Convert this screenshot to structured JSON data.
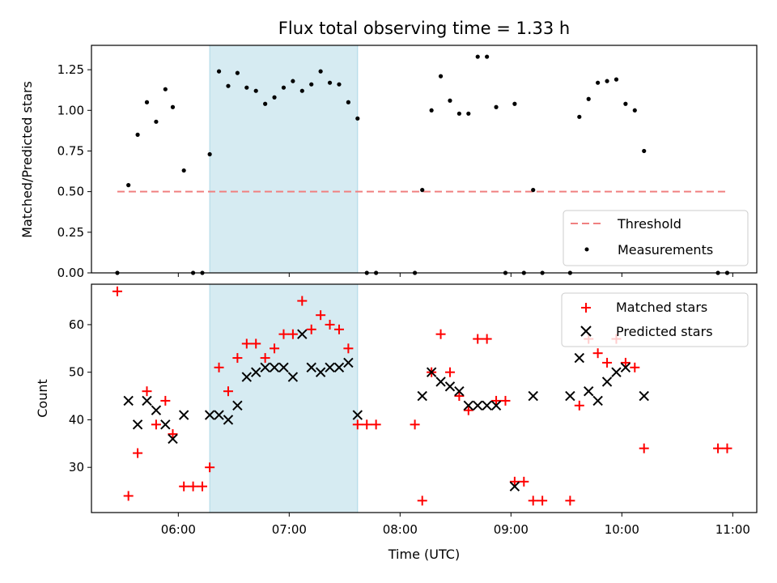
{
  "chart_data": [
    {
      "type": "scatter",
      "title": "Flux total observing time = 1.33 h",
      "xlabel": "",
      "ylabel": "Matched/Predicted stars",
      "ylim": [
        0,
        1.4
      ],
      "yticks": [
        "0.00",
        "0.25",
        "0.50",
        "0.75",
        "1.00",
        "1.25"
      ],
      "shaded_interval": [
        "06:17",
        "07:37"
      ],
      "threshold": {
        "name": "Threshold",
        "value": 0.5,
        "x_start": "05:27",
        "x_end": "10:57",
        "color": "#f08080"
      },
      "legend": {
        "position": "lower-right",
        "entries": [
          "Threshold",
          "Measurements"
        ]
      },
      "series": [
        {
          "name": "Measurements",
          "color": "#000000",
          "points": [
            [
              "05:27",
              0.0
            ],
            [
              "05:33",
              0.54
            ],
            [
              "05:38",
              0.85
            ],
            [
              "05:43",
              1.05
            ],
            [
              "05:48",
              0.93
            ],
            [
              "05:53",
              1.13
            ],
            [
              "05:57",
              1.02
            ],
            [
              "06:03",
              0.63
            ],
            [
              "06:08",
              0.0
            ],
            [
              "06:13",
              0.0
            ],
            [
              "06:17",
              0.73
            ],
            [
              "06:22",
              1.24
            ],
            [
              "06:27",
              1.15
            ],
            [
              "06:32",
              1.23
            ],
            [
              "06:37",
              1.14
            ],
            [
              "06:42",
              1.12
            ],
            [
              "06:47",
              1.04
            ],
            [
              "06:52",
              1.08
            ],
            [
              "06:57",
              1.14
            ],
            [
              "07:02",
              1.18
            ],
            [
              "07:07",
              1.12
            ],
            [
              "07:12",
              1.16
            ],
            [
              "07:17",
              1.24
            ],
            [
              "07:22",
              1.17
            ],
            [
              "07:27",
              1.16
            ],
            [
              "07:32",
              1.05
            ],
            [
              "07:37",
              0.95
            ],
            [
              "07:42",
              0.0
            ],
            [
              "07:47",
              0.0
            ],
            [
              "08:08",
              0.0
            ],
            [
              "08:12",
              0.51
            ],
            [
              "08:17",
              1.0
            ],
            [
              "08:22",
              1.21
            ],
            [
              "08:27",
              1.06
            ],
            [
              "08:32",
              0.98
            ],
            [
              "08:37",
              0.98
            ],
            [
              "08:42",
              1.33
            ],
            [
              "08:47",
              1.33
            ],
            [
              "08:52",
              1.02
            ],
            [
              "08:57",
              0.0
            ],
            [
              "09:02",
              1.04
            ],
            [
              "09:07",
              0.0
            ],
            [
              "09:12",
              0.51
            ],
            [
              "09:17",
              0.0
            ],
            [
              "09:32",
              0.0
            ],
            [
              "09:37",
              0.96
            ],
            [
              "09:42",
              1.07
            ],
            [
              "09:47",
              1.17
            ],
            [
              "09:52",
              1.18
            ],
            [
              "09:57",
              1.19
            ],
            [
              "10:02",
              1.04
            ],
            [
              "10:07",
              1.0
            ],
            [
              "10:12",
              0.75
            ],
            [
              "10:52",
              0.0
            ],
            [
              "10:57",
              0.0
            ]
          ]
        }
      ]
    },
    {
      "type": "scatter",
      "title": "",
      "xlabel": "Time (UTC)",
      "ylabel": "Count",
      "ylim": [
        20.5,
        68.5
      ],
      "yticks": [
        "30",
        "40",
        "50",
        "60"
      ],
      "xlim": [
        "05:13",
        "11:13"
      ],
      "xticks": [
        "06:00",
        "07:00",
        "08:00",
        "09:00",
        "10:00",
        "11:00"
      ],
      "shaded_interval": [
        "06:17",
        "07:37"
      ],
      "legend": {
        "position": "upper-right",
        "entries": [
          "Matched stars",
          "Predicted stars"
        ]
      },
      "series": [
        {
          "name": "Matched stars",
          "color": "#ff0000",
          "marker": "plus",
          "points": [
            [
              "05:27",
              67
            ],
            [
              "05:33",
              24
            ],
            [
              "05:38",
              33
            ],
            [
              "05:43",
              46
            ],
            [
              "05:48",
              39
            ],
            [
              "05:53",
              44
            ],
            [
              "05:57",
              37
            ],
            [
              "06:03",
              26
            ],
            [
              "06:08",
              26
            ],
            [
              "06:13",
              26
            ],
            [
              "06:17",
              30
            ],
            [
              "06:22",
              51
            ],
            [
              "06:27",
              46
            ],
            [
              "06:32",
              53
            ],
            [
              "06:37",
              56
            ],
            [
              "06:42",
              56
            ],
            [
              "06:47",
              53
            ],
            [
              "06:52",
              55
            ],
            [
              "06:57",
              58
            ],
            [
              "07:02",
              58
            ],
            [
              "07:07",
              65
            ],
            [
              "07:12",
              59
            ],
            [
              "07:17",
              62
            ],
            [
              "07:22",
              60
            ],
            [
              "07:27",
              59
            ],
            [
              "07:32",
              55
            ],
            [
              "07:37",
              39
            ],
            [
              "07:42",
              39
            ],
            [
              "07:47",
              39
            ],
            [
              "08:08",
              39
            ],
            [
              "08:12",
              23
            ],
            [
              "08:17",
              50
            ],
            [
              "08:22",
              58
            ],
            [
              "08:27",
              50
            ],
            [
              "08:32",
              45
            ],
            [
              "08:37",
              42
            ],
            [
              "08:42",
              57
            ],
            [
              "08:47",
              57
            ],
            [
              "08:52",
              44
            ],
            [
              "08:57",
              44
            ],
            [
              "09:02",
              27
            ],
            [
              "09:07",
              27
            ],
            [
              "09:12",
              23
            ],
            [
              "09:17",
              23
            ],
            [
              "09:32",
              23
            ],
            [
              "09:37",
              43
            ],
            [
              "09:42",
              57
            ],
            [
              "09:47",
              54
            ],
            [
              "09:52",
              52
            ],
            [
              "09:57",
              57
            ],
            [
              "10:02",
              52
            ],
            [
              "10:07",
              51
            ],
            [
              "10:12",
              34
            ],
            [
              "10:52",
              34
            ],
            [
              "10:57",
              34
            ]
          ]
        },
        {
          "name": "Predicted stars",
          "color": "#000000",
          "marker": "x",
          "points": [
            [
              "05:33",
              44
            ],
            [
              "05:38",
              39
            ],
            [
              "05:43",
              44
            ],
            [
              "05:48",
              42
            ],
            [
              "05:53",
              39
            ],
            [
              "05:57",
              36
            ],
            [
              "06:03",
              41
            ],
            [
              "06:17",
              41
            ],
            [
              "06:22",
              41
            ],
            [
              "06:27",
              40
            ],
            [
              "06:32",
              43
            ],
            [
              "06:37",
              49
            ],
            [
              "06:42",
              50
            ],
            [
              "06:47",
              51
            ],
            [
              "06:52",
              51
            ],
            [
              "06:57",
              51
            ],
            [
              "07:02",
              49
            ],
            [
              "07:07",
              58
            ],
            [
              "07:12",
              51
            ],
            [
              "07:17",
              50
            ],
            [
              "07:22",
              51
            ],
            [
              "07:27",
              51
            ],
            [
              "07:32",
              52
            ],
            [
              "07:37",
              41
            ],
            [
              "08:12",
              45
            ],
            [
              "08:17",
              50
            ],
            [
              "08:22",
              48
            ],
            [
              "08:27",
              47
            ],
            [
              "08:32",
              46
            ],
            [
              "08:37",
              43
            ],
            [
              "08:42",
              43
            ],
            [
              "08:47",
              43
            ],
            [
              "08:52",
              43
            ],
            [
              "09:02",
              26
            ],
            [
              "09:12",
              45
            ],
            [
              "09:32",
              45
            ],
            [
              "09:37",
              53
            ],
            [
              "09:42",
              46
            ],
            [
              "09:47",
              44
            ],
            [
              "09:52",
              48
            ],
            [
              "09:57",
              50
            ],
            [
              "10:02",
              51
            ],
            [
              "10:12",
              45
            ]
          ]
        }
      ]
    }
  ]
}
